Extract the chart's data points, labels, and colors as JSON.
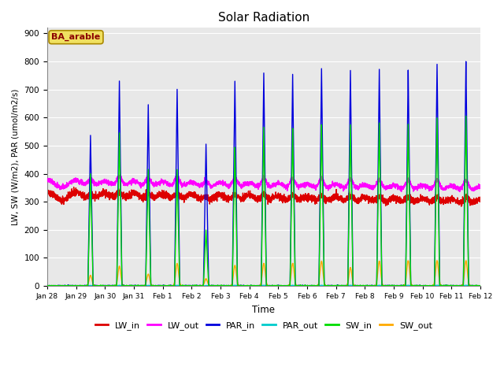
{
  "title": "Solar Radiation",
  "xlabel": "Time",
  "ylabel": "LW, SW (W/m2), PAR (umol/m2/s)",
  "annotation": "BA_arable",
  "ylim": [
    0,
    920
  ],
  "yticks": [
    0,
    100,
    200,
    300,
    400,
    500,
    600,
    700,
    800,
    900
  ],
  "n_days": 15,
  "points_per_day": 288,
  "par_peaks": [
    0,
    537,
    730,
    645,
    700,
    505,
    730,
    760,
    755,
    775,
    770,
    770,
    770,
    790,
    800
  ],
  "sw_peaks": [
    0,
    400,
    545,
    415,
    415,
    200,
    495,
    565,
    560,
    575,
    575,
    580,
    575,
    600,
    605
  ],
  "sw_out_peaks": [
    0,
    37,
    70,
    42,
    80,
    25,
    73,
    80,
    80,
    88,
    65,
    88,
    90,
    90,
    90
  ],
  "series": {
    "LW_in": {
      "color": "#dd0000",
      "lw": 1.0
    },
    "LW_out": {
      "color": "#ff00ff",
      "lw": 1.0
    },
    "PAR_in": {
      "color": "#0000dd",
      "lw": 1.0
    },
    "PAR_out": {
      "color": "#00cccc",
      "lw": 1.0
    },
    "SW_in": {
      "color": "#00dd00",
      "lw": 1.0
    },
    "SW_out": {
      "color": "#ffaa00",
      "lw": 1.0
    }
  },
  "plot_bg_color": "#e8e8e8",
  "grid_color": "#ffffff",
  "xtick_labels": [
    "Jan 28",
    "Jan 29",
    "Jan 30",
    "Jan 31",
    "Feb 1",
    "Feb 2",
    "Feb 3",
    "Feb 4",
    "Feb 5",
    "Feb 6",
    "Feb 7",
    "Feb 8",
    "Feb 9",
    "Feb 10",
    "Feb 11",
    "Feb 12"
  ],
  "legend_labels": [
    "LW_in",
    "LW_out",
    "PAR_in",
    "PAR_out",
    "SW_in",
    "SW_out"
  ],
  "legend_colors": [
    "#dd0000",
    "#ff00ff",
    "#0000dd",
    "#00cccc",
    "#00dd00",
    "#ffaa00"
  ]
}
